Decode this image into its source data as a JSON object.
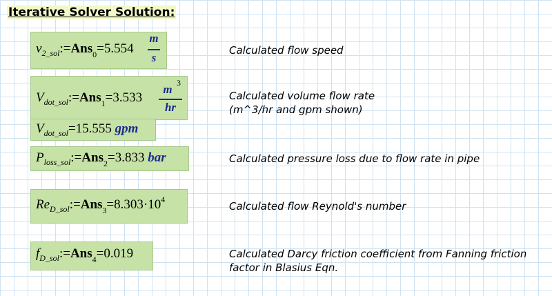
{
  "heading": "Iterative Solver Solution:",
  "rows": [
    {
      "var": "v",
      "sub": "2_sol",
      "assign": ":=",
      "ans": "Ans",
      "index": "0",
      "equals": "=",
      "value": "5.554",
      "unit_num": "m",
      "unit_den": "s",
      "desc": "Calculated flow speed"
    },
    {
      "var": "V",
      "sub": "dot_sol",
      "assign": ":=",
      "ans": "Ans",
      "index": "1",
      "equals": "=",
      "value": "3.533",
      "unit_num": "m",
      "unit_sup": "3",
      "unit_den": "hr",
      "desc": "Calculated volume flow rate",
      "desc2": "(m^3/hr and gpm shown)",
      "alt_var": "V",
      "alt_sub": "dot_sol",
      "alt_equals": "=",
      "alt_value": "15.555",
      "alt_unit": "gpm"
    },
    {
      "var": "P",
      "sub": "loss_sol",
      "assign": ":=",
      "ans": "Ans",
      "index": "2",
      "equals": "=",
      "value": "3.833",
      "unit": "bar",
      "desc": "Calculated pressure loss due to flow rate in pipe"
    },
    {
      "var": "Re",
      "sub": "D_sol",
      "assign": ":=",
      "ans": "Ans",
      "index": "3",
      "equals": "=",
      "value": "8.303",
      "times": "·",
      "base": "10",
      "exp": "4",
      "desc": "Calculated flow Reynold's number"
    },
    {
      "var": "f",
      "sub": "D_sol",
      "assign": ":=",
      "ans": "Ans",
      "index": "4",
      "equals": "=",
      "value": "0.019",
      "desc": "Calculated Darcy friction coefficient from Fanning friction",
      "desc2": "factor in Blasius Eqn."
    }
  ],
  "colors": {
    "region": "#c6e2a6",
    "unit": "#1a2c8f",
    "grid": "#cfe3f2",
    "heading_bg": "#f2f8c8"
  }
}
